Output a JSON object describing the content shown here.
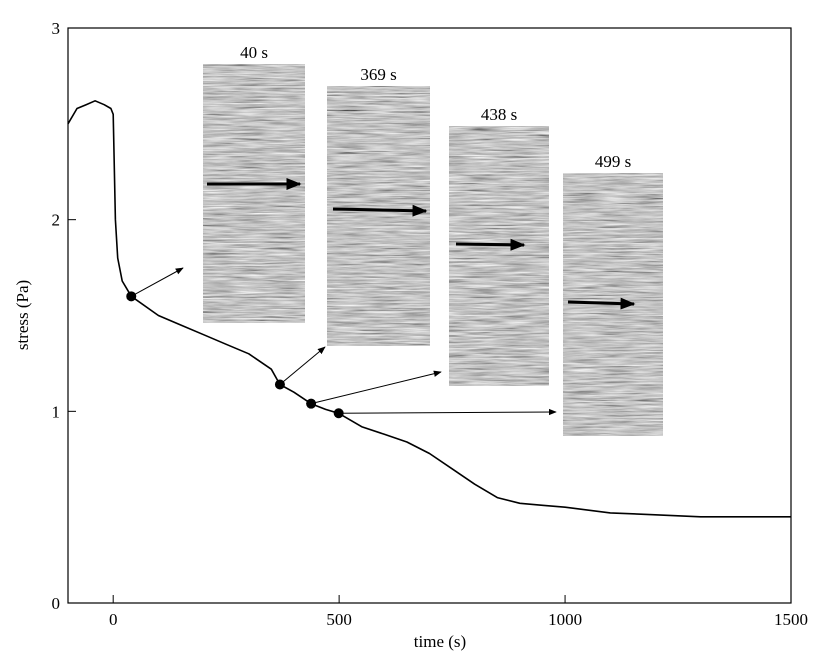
{
  "chart_data": {
    "type": "line",
    "x_label": "time  (s)",
    "y_label": "stress  (Pa)",
    "x": [
      -100,
      -80,
      -60,
      -40,
      -20,
      -5,
      0,
      5,
      10,
      20,
      40,
      100,
      150,
      200,
      250,
      300,
      350,
      369,
      400,
      438,
      470,
      499,
      550,
      600,
      650,
      700,
      750,
      800,
      850,
      900,
      950,
      1000,
      1100,
      1200,
      1300,
      1400,
      1500
    ],
    "values": [
      2.5,
      2.58,
      2.6,
      2.62,
      2.6,
      2.58,
      2.55,
      2.0,
      1.8,
      1.68,
      1.6,
      1.5,
      1.45,
      1.4,
      1.35,
      1.3,
      1.22,
      1.14,
      1.1,
      1.04,
      1.01,
      0.99,
      0.92,
      0.88,
      0.84,
      0.78,
      0.7,
      0.62,
      0.55,
      0.52,
      0.51,
      0.5,
      0.47,
      0.46,
      0.45,
      0.45,
      0.45
    ],
    "color": "#000000",
    "markers": {
      "x": [
        40,
        369,
        438,
        499
      ],
      "values": [
        1.6,
        1.14,
        1.04,
        0.99
      ]
    },
    "insets": [
      "40 s",
      "369 s",
      "438 s",
      "499 s"
    ],
    "xlim": [
      -100,
      1500
    ],
    "xticks": [
      0,
      500,
      1000,
      1500
    ],
    "ylim": [
      0,
      3
    ],
    "yticks": [
      0,
      1,
      2,
      3
    ]
  }
}
